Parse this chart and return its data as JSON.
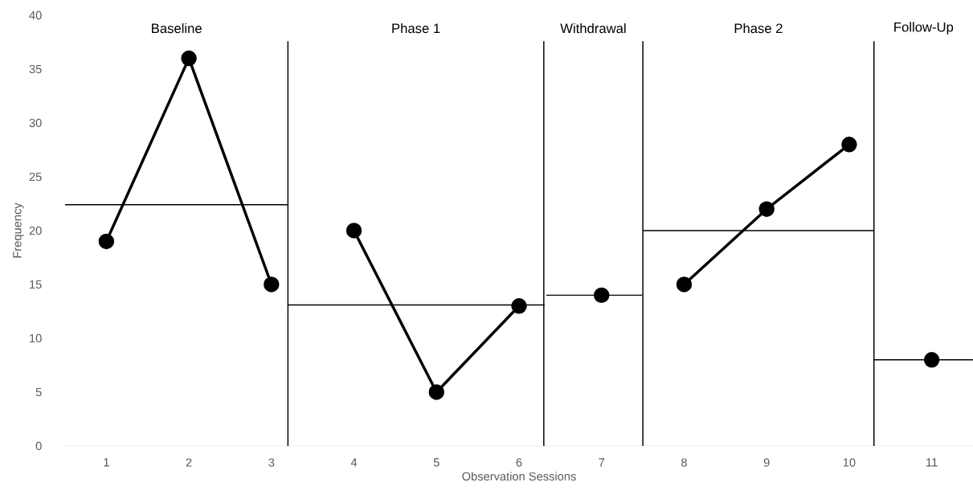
{
  "chart_data": {
    "type": "line",
    "xlabel": "Observation Sessions",
    "ylabel": "Frequency",
    "xlim": [
      0.5,
      11.5
    ],
    "xticks": [
      1,
      2,
      3,
      4,
      5,
      6,
      7,
      8,
      9,
      10,
      11
    ],
    "ylim": [
      0,
      40
    ],
    "yticks": [
      0,
      5,
      10,
      15,
      20,
      25,
      30,
      35,
      40
    ],
    "series": [
      {
        "color": "#000000",
        "marker": "circle",
        "x": [
          1,
          2,
          3
        ],
        "values": [
          19,
          36,
          15
        ]
      },
      {
        "color": "#000000",
        "marker": "circle",
        "x": [
          4,
          5,
          6
        ],
        "values": [
          20,
          5,
          13
        ]
      },
      {
        "color": "#000000",
        "marker": "circle",
        "x": [
          7
        ],
        "values": [
          14
        ]
      },
      {
        "color": "#000000",
        "marker": "circle",
        "x": [
          8,
          9,
          10
        ],
        "values": [
          15,
          22,
          28
        ]
      },
      {
        "color": "#000000",
        "marker": "circle",
        "x": [
          11
        ],
        "values": [
          8
        ]
      },
      {
        "color": "#000000",
        "marker": "none",
        "x": [
          0.5,
          3.2
        ],
        "values": [
          22.4,
          22.4
        ]
      },
      {
        "color": "#000000",
        "marker": "none",
        "x": [
          3.2,
          6.31
        ],
        "values": [
          13.1,
          13.1
        ]
      },
      {
        "color": "#000000",
        "marker": "none",
        "x": [
          6.33,
          7.49
        ],
        "values": [
          14,
          14
        ]
      },
      {
        "color": "#000000",
        "marker": "none",
        "x": [
          7.5,
          10.3
        ],
        "values": [
          20,
          20
        ]
      },
      {
        "color": "#000000",
        "marker": "none",
        "x": [
          10.3,
          11.5
        ],
        "values": [
          8,
          8
        ]
      }
    ],
    "ref_lines": [
      {
        "axis": "x",
        "value": 3.2,
        "color": "#000000"
      },
      {
        "axis": "x",
        "value": 6.3,
        "color": "#000000"
      },
      {
        "axis": "x",
        "value": 7.5,
        "color": "#000000"
      },
      {
        "axis": "x",
        "value": 10.3,
        "color": "#000000"
      }
    ],
    "annotations": [
      "Baseline",
      "Phase 1",
      "Withdrawal",
      "Phase 2",
      "Follow-Up"
    ]
  }
}
